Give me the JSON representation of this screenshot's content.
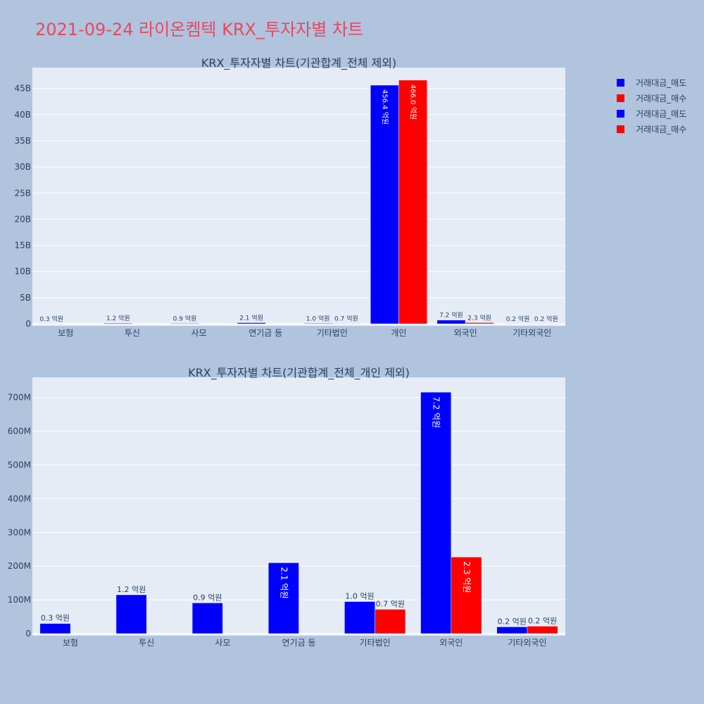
{
  "title": "2021-09-24 라이온켐텍 KRX_투자자별 차트",
  "colors": {
    "sell": "#0000ff",
    "buy": "#ff0000",
    "plot_bg": "#e5ecf6",
    "paper_bg": "#b0c4de",
    "title": "#e8485f"
  },
  "legend": [
    {
      "label": "거래대금_매도",
      "color": "#0000ff"
    },
    {
      "label": "거래대금_매수",
      "color": "#ff0000"
    },
    {
      "label": "거래대금_매도",
      "color": "#0000ff"
    },
    {
      "label": "거래대금_매수",
      "color": "#ff0000"
    }
  ],
  "chart_data": [
    {
      "type": "bar",
      "title": "KRX_투자자별 차트(기관합계_전체 제외)",
      "categories": [
        "보험",
        "투신",
        "사모",
        "연기금 등",
        "기타법인",
        "개인",
        "외국인",
        "기타외국인"
      ],
      "series": [
        {
          "name": "거래대금_매도",
          "color": "#0000ff",
          "values": [
            30000000,
            120000000,
            90000000,
            210000000,
            100000000,
            45640000000,
            720000000,
            20000000
          ],
          "labels": [
            "0.3 억원",
            "1.2 억원",
            "0.9 억원",
            "2.1 억원",
            "1.0 억원",
            "456.4 억원",
            "7.2 억원",
            "0.2 억원"
          ]
        },
        {
          "name": "거래대금_매수",
          "color": "#ff0000",
          "values": [
            0,
            0,
            0,
            0,
            70000000,
            46600000000,
            230000000,
            20000000
          ],
          "labels": [
            "",
            "",
            "",
            "",
            "0.7 억원",
            "466.0 억원",
            "2.3 억원",
            "0.2 억원"
          ]
        }
      ],
      "yticks": [
        0,
        5000000000,
        10000000000,
        15000000000,
        20000000000,
        25000000000,
        30000000000,
        35000000000,
        40000000000,
        45000000000
      ],
      "ytick_labels": [
        "0",
        "5B",
        "10B",
        "15B",
        "20B",
        "25B",
        "30B",
        "35B",
        "40B",
        "45B"
      ],
      "ylim": [
        0,
        49000000000
      ]
    },
    {
      "type": "bar",
      "title": "KRX_투자자별 차트(기관합계_전체_개인 제외)",
      "categories": [
        "보험",
        "투신",
        "사모",
        "연기금 등",
        "기타법인",
        "외국인",
        "기타외국인"
      ],
      "series": [
        {
          "name": "거래대금_매도",
          "color": "#0000ff",
          "values": [
            30000000,
            115000000,
            91000000,
            210000000,
            95000000,
            716000000,
            20000000
          ],
          "labels": [
            "0.3 억원",
            "1.2 억원",
            "0.9 억원",
            "2.1 억원",
            "1.0 억원",
            "7.2 억원",
            "0.2 억원"
          ]
        },
        {
          "name": "거래대금_매수",
          "color": "#ff0000",
          "values": [
            0,
            0,
            0,
            0,
            72000000,
            227000000,
            22000000
          ],
          "labels": [
            "",
            "",
            "",
            "",
            "0.7 억원",
            "2.3 억원",
            "0.2 억원"
          ]
        }
      ],
      "yticks": [
        0,
        100000000,
        200000000,
        300000000,
        400000000,
        500000000,
        600000000,
        700000000
      ],
      "ytick_labels": [
        "0",
        "100M",
        "200M",
        "300M",
        "400M",
        "500M",
        "600M",
        "700M"
      ],
      "ylim": [
        0,
        760000000
      ]
    }
  ]
}
